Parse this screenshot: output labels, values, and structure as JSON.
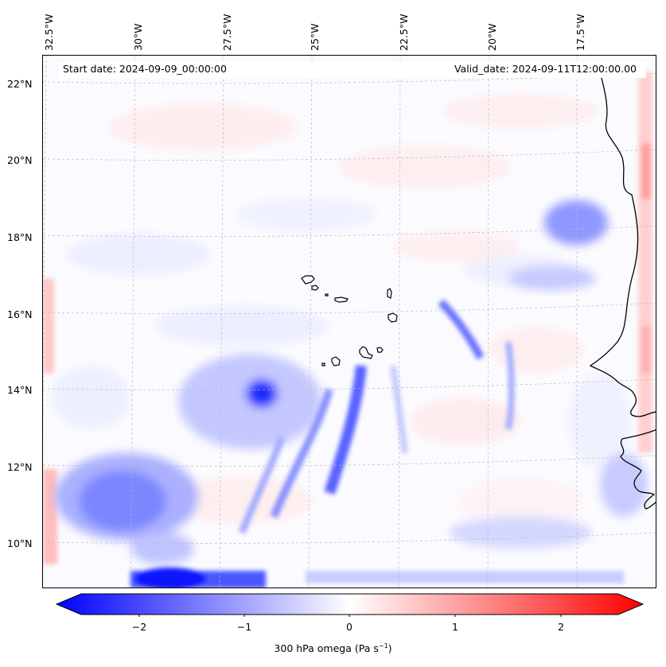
{
  "header": {
    "start_date": "Start date: 2024-09-09_00:00:00",
    "valid_date": "Valid_date: 2024-09-11T12:00:00.00"
  },
  "axes": {
    "longitude_ticks": [
      "32.5°W",
      "30°W",
      "27.5°W",
      "25°W",
      "22.5°W",
      "20°W",
      "17.5°W"
    ],
    "latitude_ticks": [
      "22°N",
      "20°N",
      "18°N",
      "16°N",
      "14°N",
      "12°N",
      "10°N"
    ],
    "grid": true,
    "lon_range": [
      -33,
      -15.5
    ],
    "lat_range": [
      8.8,
      22.8
    ]
  },
  "colorbar": {
    "ticks": [
      "−2",
      "−1",
      "0",
      "1",
      "2"
    ],
    "tick_values": [
      -2,
      -1,
      0,
      1,
      2
    ],
    "range": [
      -2.5,
      2.5
    ],
    "label_main": "300 hPa omega (Pa s",
    "label_exp": "−1",
    "label_close": ")",
    "colors": {
      "negative": "#0000ff",
      "zero": "#ffffff",
      "positive": "#ff0000"
    }
  },
  "colors": {
    "coastline": "#000000",
    "grid": "#bbbbbb"
  }
}
